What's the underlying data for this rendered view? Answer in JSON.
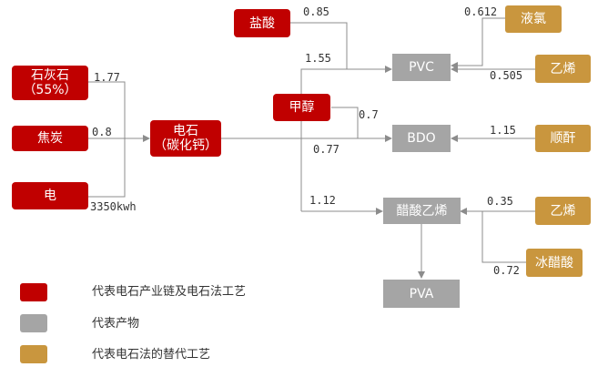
{
  "nodes": {
    "limestone": "石灰石\n（55%）",
    "coke": "焦炭",
    "electricity": "电",
    "carbide": "电石\n（碳化钙）",
    "hcl": "盐酸",
    "methanol": "甲醇",
    "pvc": "PVC",
    "bdo": "BDO",
    "vinyl_acetate": "醋酸乙烯",
    "pva": "PVA",
    "liquid_chlorine": "液氯",
    "ethylene_top": "乙烯",
    "maleic_anhydride": "顺酐",
    "ethylene_mid": "乙烯",
    "glacial_acetic_acid": "冰醋酸"
  },
  "edge_labels": {
    "limestone": "1.77",
    "coke": "0.8",
    "electricity": "3350kwh",
    "hcl": "0.85",
    "carbide_pvc": "1.55",
    "methanol_bdo": "0.7",
    "carbide_bdo": "0.77",
    "carbide_va": "1.12",
    "liquid_chlorine": "0.612",
    "ethylene_pvc": "0.505",
    "maleic_anhydride": "1.15",
    "ethylene_va": "0.35",
    "glacial_acetic_acid": "0.72"
  },
  "legend": [
    {
      "text": "代表电石产业链及电石法工艺",
      "color": "#c00000"
    },
    {
      "text": "代表产物",
      "color": "#a5a5a5"
    },
    {
      "text": "代表电石法的替代工艺",
      "color": "#c9963e"
    }
  ],
  "colors": {
    "red": "#c00000",
    "gray": "#a5a5a5",
    "gold": "#c9963e",
    "line": "#8c8c8c"
  }
}
